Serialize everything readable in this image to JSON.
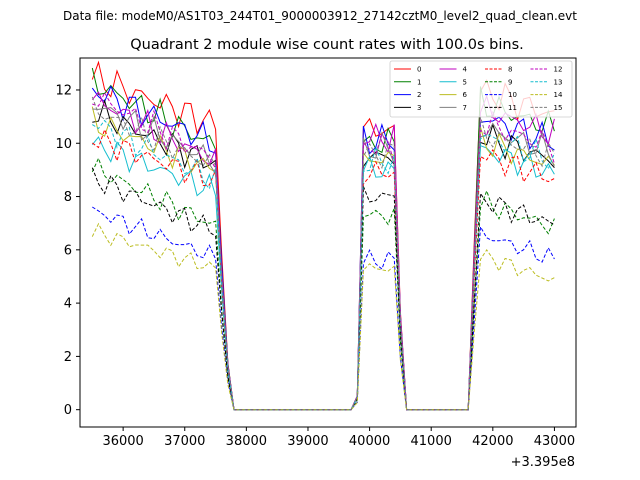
{
  "chart_data": {
    "type": "line",
    "suptitle": "Data file: modeM0/AS1T03_244T01_9000003912_27142cztM0_level2_quad_clean.evt",
    "title": "Quadrant 2 module wise count rates with 100.0s bins.",
    "xlabel": "",
    "ylabel": "",
    "x_offset_label": "+3.395e8",
    "xlim": [
      35300,
      43350
    ],
    "ylim": [
      -0.65,
      13.2
    ],
    "xticks": [
      36000,
      37000,
      38000,
      39000,
      40000,
      41000,
      42000,
      43000
    ],
    "yticks": [
      0,
      2,
      4,
      6,
      8,
      10,
      12
    ],
    "xtick_labels": [
      "36000",
      "37000",
      "38000",
      "39000",
      "40000",
      "41000",
      "42000",
      "43000"
    ],
    "ytick_labels": [
      "0",
      "2",
      "4",
      "6",
      "8",
      "10",
      "12"
    ],
    "legend_position": "upper-right",
    "segments": [
      {
        "x_start": 35500,
        "step": 100,
        "count": 23
      },
      {
        "x_start": 37800,
        "step": 100,
        "count": 20
      },
      {
        "x_start": 39800,
        "step": 100,
        "count": 8
      },
      {
        "x_start": 40600,
        "step": 100,
        "count": 11
      },
      {
        "x_start": 41700,
        "step": 100,
        "count": 14
      }
    ],
    "series": [
      {
        "name": "0",
        "color": "#ff0000",
        "dash": "solid",
        "base1": 12.5,
        "slope1": -0.09,
        "base3": 10.5,
        "base5": 11.5
      },
      {
        "name": "1",
        "color": "#008000",
        "dash": "solid",
        "base1": 12.3,
        "slope1": -0.12,
        "base3": 10.0,
        "base5": 11.0
      },
      {
        "name": "2",
        "color": "#0000ff",
        "dash": "solid",
        "base1": 12.0,
        "slope1": -0.1,
        "base3": 10.1,
        "base5": 10.5
      },
      {
        "name": "3",
        "color": "#000000",
        "dash": "solid",
        "base1": 11.2,
        "slope1": -0.1,
        "base3": 9.5,
        "base5": 9.8
      },
      {
        "name": "4",
        "color": "#bf00bf",
        "dash": "solid",
        "base1": 11.7,
        "slope1": -0.12,
        "base3": 10.2,
        "base5": 10.8
      },
      {
        "name": "5",
        "color": "#17becf",
        "dash": "solid",
        "base1": 10.0,
        "slope1": -0.09,
        "base3": 9.0,
        "base5": 9.3
      },
      {
        "name": "6",
        "color": "#bcbd22",
        "dash": "solid",
        "base1": 10.8,
        "slope1": -0.09,
        "base3": 9.4,
        "base5": 9.6
      },
      {
        "name": "7",
        "color": "#7f7f7f",
        "dash": "solid",
        "base1": 11.5,
        "slope1": -0.11,
        "base3": 9.8,
        "base5": 10.1
      },
      {
        "name": "8",
        "color": "#ff0000",
        "dash": "dashed",
        "base1": 10.2,
        "slope1": -0.08,
        "base3": 8.9,
        "base5": 9.1
      },
      {
        "name": "9",
        "color": "#008000",
        "dash": "dashed",
        "base1": 9.1,
        "slope1": -0.11,
        "base3": 7.3,
        "base5": 7.3
      },
      {
        "name": "10",
        "color": "#0000ff",
        "dash": "dashed",
        "base1": 7.5,
        "slope1": -0.09,
        "base3": 5.6,
        "base5": 6.1
      },
      {
        "name": "11",
        "color": "#000000",
        "dash": "dashed",
        "base1": 8.7,
        "slope1": -0.1,
        "base3": 8.0,
        "base5": 7.4
      },
      {
        "name": "12",
        "color": "#bf00bf",
        "dash": "dashed",
        "base1": 11.8,
        "slope1": -0.12,
        "base3": 9.9,
        "base5": 10.3
      },
      {
        "name": "13",
        "color": "#17becf",
        "dash": "dashed",
        "base1": 10.8,
        "slope1": -0.11,
        "base3": 9.3,
        "base5": 9.8
      },
      {
        "name": "14",
        "color": "#bcbd22",
        "dash": "dashed",
        "base1": 6.7,
        "slope1": -0.07,
        "base3": 5.3,
        "base5": 5.3
      },
      {
        "name": "15",
        "color": "#7f7f7f",
        "dash": "dashed",
        "base1": 11.3,
        "slope1": -0.11,
        "base3": 9.6,
        "base5": 9.9
      }
    ]
  }
}
